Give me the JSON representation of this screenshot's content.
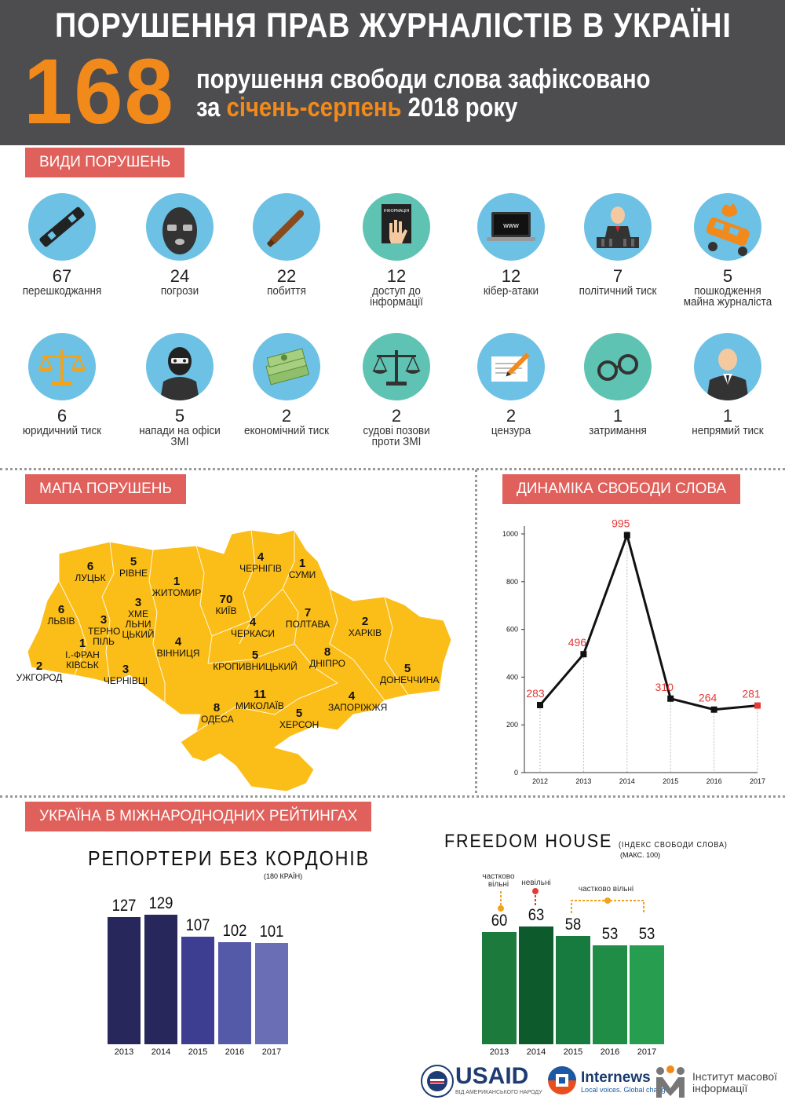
{
  "header": {
    "title": "ПОРУШЕННЯ ПРАВ ЖУРНАЛІСТІВ В УКРАЇНІ",
    "big_number": "168",
    "line1": "порушення свободи слова зафіксовано",
    "line2_prefix": "за",
    "line2_highlight": "січень-серпень",
    "line2_suffix": "2018 року",
    "accent_color": "#f2891b"
  },
  "violations": {
    "section_label": "ВИДИ ПОРУШЕНЬ",
    "items": [
      {
        "count": "67",
        "label": "перешкоджання",
        "icon": "camera-strap-icon"
      },
      {
        "count": "24",
        "label": "погрози",
        "icon": "balaclava-mask-icon"
      },
      {
        "count": "22",
        "label": "побиття",
        "icon": "baseball-bat-icon"
      },
      {
        "count": "12",
        "label": "доступ до інформації",
        "icon": "stop-hand-document-icon",
        "icon_text": "ІНФОРМАЦІЯ"
      },
      {
        "count": "12",
        "label": "кібер-атаки",
        "icon": "laptop-www-icon",
        "icon_text": "www"
      },
      {
        "count": "7",
        "label": "політичний тиск",
        "icon": "politician-podium-icon"
      },
      {
        "count": "5",
        "label": "пошкодження майна журналіста",
        "icon": "burning-car-icon"
      },
      {
        "count": "6",
        "label": "юридичний тиск",
        "icon": "scales-icon"
      },
      {
        "count": "5",
        "label": "напади на офіси ЗМІ",
        "icon": "masked-attacker-icon"
      },
      {
        "count": "2",
        "label": "економічний тиск",
        "icon": "money-stack-icon"
      },
      {
        "count": "2",
        "label": "судові позови проти ЗМІ",
        "icon": "court-scales-icon"
      },
      {
        "count": "2",
        "label": "цензура",
        "icon": "pen-document-icon"
      },
      {
        "count": "1",
        "label": "затримання",
        "icon": "handcuffs-icon"
      },
      {
        "count": "1",
        "label": "непрямий тиск",
        "icon": "businessman-icon"
      }
    ]
  },
  "map": {
    "section_label": "МАПА ПОРУШЕНЬ",
    "regions": [
      {
        "count": "6",
        "name": "ЛУЦЬК"
      },
      {
        "count": "5",
        "name": "РІВНЕ"
      },
      {
        "count": "1",
        "name": "ЖИТОМИР"
      },
      {
        "count": "4",
        "name": "ЧЕРНІГІВ"
      },
      {
        "count": "1",
        "name": "СУМИ"
      },
      {
        "count": "6",
        "name": "ЛЬВІВ"
      },
      {
        "count": "3",
        "name": "ТЕРНО ПІЛЬ"
      },
      {
        "count": "3",
        "name": "ХМЕ ЛЬНИ ЦЬКИЙ"
      },
      {
        "count": "70",
        "name": "КИЇВ"
      },
      {
        "count": "4",
        "name": "ЧЕРКАСИ"
      },
      {
        "count": "7",
        "name": "ПОЛТАВА"
      },
      {
        "count": "2",
        "name": "ХАРКІВ"
      },
      {
        "count": "1",
        "name": "І.-ФРАН КІВСЬК"
      },
      {
        "count": "4",
        "name": "ВІННИЦЯ"
      },
      {
        "count": "5",
        "name": "КРОПИВНИЦЬКИЙ"
      },
      {
        "count": "8",
        "name": "ДНІПРО"
      },
      {
        "count": "5",
        "name": "ДОНЕЧЧИНА"
      },
      {
        "count": "2",
        "name": "УЖГОРОД"
      },
      {
        "count": "3",
        "name": "ЧЕРНІВЦІ"
      },
      {
        "count": "11",
        "name": "МИКОЛАЇВ"
      },
      {
        "count": "4",
        "name": "ЗАПОРІЖЖЯ"
      },
      {
        "count": "8",
        "name": "ОДЕСА"
      },
      {
        "count": "5",
        "name": "ХЕРСОН"
      }
    ]
  },
  "dynamics": {
    "section_label": "ДИНАМІКА СВОБОДИ СЛОВА"
  },
  "ratings": {
    "section_label": "УКРАЇНА В МІЖНАРОДНОДНИХ РЕЙТИНГАХ",
    "rsf_title": "РЕПОРТЕРИ БЕЗ КОРДОНІВ",
    "rsf_subtitle": "(180 КРАЇН)",
    "fh_title": "FREEDOM HOUSE",
    "fh_title_small": "(ІНДЕКС СВОБОДИ СЛОВА)",
    "fh_subtitle": "(МАКС. 100)",
    "fh_notes": [
      "частково вільні",
      "невільні",
      "частково вільні"
    ]
  },
  "chart_data": [
    {
      "type": "line",
      "title": "ДИНАМІКА СВОБОДИ СЛОВА",
      "x": [
        "2012",
        "2013",
        "2014",
        "2015",
        "2016",
        "2017"
      ],
      "values": [
        283,
        496,
        995,
        310,
        264,
        281
      ],
      "ylim": [
        0,
        1000
      ],
      "yticks": [
        0,
        200,
        400,
        600,
        800,
        1000
      ],
      "label_color": "#e53935",
      "last_point_color": "#e53935",
      "grid": false
    },
    {
      "type": "bar",
      "title": "РЕПОРТЕРИ БЕЗ КОРДОНІВ",
      "subtitle": "(180 КРАЇН)",
      "categories": [
        "2013",
        "2014",
        "2015",
        "2016",
        "2017"
      ],
      "values": [
        127,
        129,
        107,
        102,
        101
      ],
      "colors": [
        "#27275c",
        "#27275c",
        "#3d3e92",
        "#5459a8",
        "#6a6fb5"
      ]
    },
    {
      "type": "bar",
      "title": "FREEDOM HOUSE",
      "subtitle": "(МАКС. 100)",
      "categories": [
        "2013",
        "2014",
        "2015",
        "2016",
        "2017"
      ],
      "values": [
        60,
        63,
        58,
        53,
        53
      ],
      "colors": [
        "#1b7a3c",
        "#0d5a2c",
        "#177a3e",
        "#1f8d45",
        "#279e4f"
      ]
    }
  ],
  "footer": {
    "usaid": "USAID",
    "usaid_sub": "ВІД АМЕРИКАНСЬКОГО НАРОДУ",
    "internews": "Internews",
    "internews_sub": "Local voices. Global change.",
    "imi": "Інститут масової інформації",
    "imi_line1": "Інститут масової",
    "imi_line2": "інформації"
  }
}
